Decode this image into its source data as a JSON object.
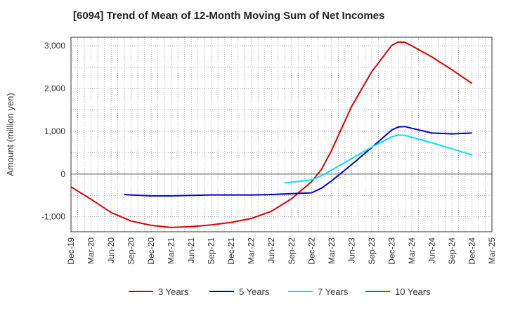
{
  "chart_data": {
    "type": "line",
    "title": "[6094]  Trend of Mean of 12-Month Moving Sum of Net Incomes",
    "ylabel": "Amount (million yen)",
    "xlabel": "",
    "ylim": [
      -1350,
      3200
    ],
    "yticks": [
      -1000,
      0,
      1000,
      2000,
      3000
    ],
    "ytick_labels": [
      "-1,000",
      "0",
      "1,000",
      "2,000",
      "3,000"
    ],
    "x_categories": [
      "Dec-19",
      "Mar-20",
      "Jun-20",
      "Sep-20",
      "Dec-20",
      "Mar-21",
      "Jun-21",
      "Sep-21",
      "Dec-21",
      "Mar-22",
      "Jun-22",
      "Sep-22",
      "Dec-22",
      "Mar-23",
      "Jun-23",
      "Sep-23",
      "Dec-23",
      "Mar-24",
      "Jun-24",
      "Sep-24",
      "Dec-24",
      "Mar-25"
    ],
    "grid": true,
    "legend_position": "bottom",
    "series": [
      {
        "name": "3 Years",
        "color": "#dd0000",
        "points": [
          [
            0,
            -300
          ],
          [
            1,
            -590
          ],
          [
            2,
            -900
          ],
          [
            3,
            -1100
          ],
          [
            4,
            -1200
          ],
          [
            5,
            -1250
          ],
          [
            6,
            -1230
          ],
          [
            7,
            -1190
          ],
          [
            8,
            -1130
          ],
          [
            9,
            -1040
          ],
          [
            10,
            -870
          ],
          [
            11,
            -580
          ],
          [
            12,
            -180
          ],
          [
            12.5,
            110
          ],
          [
            13,
            550
          ],
          [
            14,
            1580
          ],
          [
            15,
            2390
          ],
          [
            16,
            3010
          ],
          [
            16.33,
            3090
          ],
          [
            16.66,
            3080
          ],
          [
            17,
            3000
          ],
          [
            18,
            2740
          ],
          [
            19,
            2440
          ],
          [
            20,
            2120
          ]
        ]
      },
      {
        "name": "5 Years",
        "color": "#0000cc",
        "points": [
          [
            2.66,
            -480
          ],
          [
            3,
            -490
          ],
          [
            4,
            -510
          ],
          [
            5,
            -510
          ],
          [
            6,
            -500
          ],
          [
            7,
            -490
          ],
          [
            8,
            -490
          ],
          [
            9,
            -490
          ],
          [
            10,
            -480
          ],
          [
            11,
            -460
          ],
          [
            12,
            -440
          ],
          [
            12.5,
            -330
          ],
          [
            13,
            -160
          ],
          [
            14,
            220
          ],
          [
            15,
            620
          ],
          [
            16,
            1030
          ],
          [
            16.33,
            1100
          ],
          [
            16.66,
            1110
          ],
          [
            17,
            1070
          ],
          [
            18,
            960
          ],
          [
            19,
            940
          ],
          [
            20,
            960
          ]
        ]
      },
      {
        "name": "7 Years",
        "color": "#00e5ee",
        "points": [
          [
            10.66,
            -210
          ],
          [
            11,
            -190
          ],
          [
            12,
            -140
          ],
          [
            12.5,
            -40
          ],
          [
            13,
            90
          ],
          [
            14,
            360
          ],
          [
            15,
            630
          ],
          [
            16,
            870
          ],
          [
            16.33,
            910
          ],
          [
            16.66,
            905
          ],
          [
            17,
            860
          ],
          [
            18,
            730
          ],
          [
            19,
            590
          ],
          [
            20,
            450
          ]
        ]
      },
      {
        "name": "10 Years",
        "color": "#1a8a1a",
        "points": []
      }
    ]
  }
}
